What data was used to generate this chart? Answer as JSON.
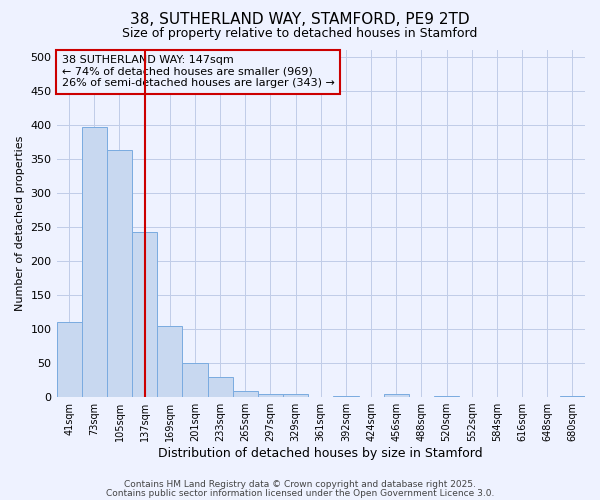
{
  "title_line1": "38, SUTHERLAND WAY, STAMFORD, PE9 2TD",
  "title_line2": "Size of property relative to detached houses in Stamford",
  "xlabel": "Distribution of detached houses by size in Stamford",
  "ylabel": "Number of detached properties",
  "categories": [
    "41sqm",
    "73sqm",
    "105sqm",
    "137sqm",
    "169sqm",
    "201sqm",
    "233sqm",
    "265sqm",
    "297sqm",
    "329sqm",
    "361sqm",
    "392sqm",
    "424sqm",
    "456sqm",
    "488sqm",
    "520sqm",
    "552sqm",
    "584sqm",
    "616sqm",
    "648sqm",
    "680sqm"
  ],
  "values": [
    111,
    397,
    363,
    243,
    105,
    50,
    30,
    9,
    5,
    5,
    0,
    2,
    0,
    4,
    0,
    2,
    0,
    0,
    0,
    0,
    2
  ],
  "bar_color": "#c8d8f0",
  "bar_edge_color": "#7aabe0",
  "vline_x": 3.0,
  "vline_color": "#cc0000",
  "ylim": [
    0,
    510
  ],
  "yticks": [
    0,
    50,
    100,
    150,
    200,
    250,
    300,
    350,
    400,
    450,
    500
  ],
  "annotation_line1": "38 SUTHERLAND WAY: 147sqm",
  "annotation_line2": "← 74% of detached houses are smaller (969)",
  "annotation_line3": "26% of semi-detached houses are larger (343) →",
  "annotation_box_color": "#cc0000",
  "footer_line1": "Contains HM Land Registry data © Crown copyright and database right 2025.",
  "footer_line2": "Contains public sector information licensed under the Open Government Licence 3.0.",
  "background_color": "#eef2ff",
  "grid_color": "#c0cce8",
  "title_fontsize": 11,
  "subtitle_fontsize": 9,
  "ann_fontsize": 8
}
